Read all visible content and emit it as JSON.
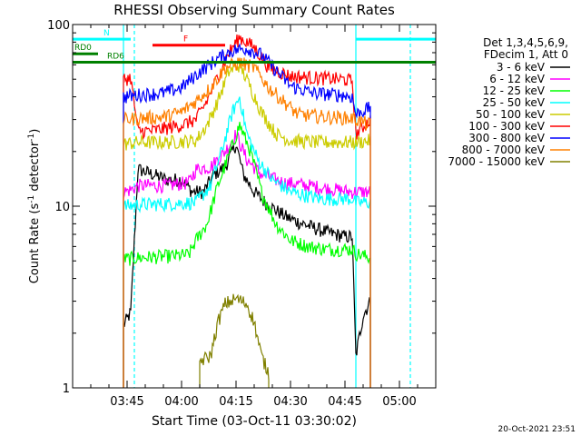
{
  "chart_data": {
    "type": "line",
    "title": "RHESSI Observing Summary Count Rates",
    "xlabel": "Start Time (03-Oct-11 03:30:02)",
    "ylabel_main": "Count Rate (s",
    "ylabel_exp1": "-1",
    "ylabel_mid": " detector",
    "ylabel_exp2": "-1",
    "ylabel_end": ")",
    "y_scale": "log",
    "ylim": [
      1,
      100
    ],
    "y_ticks": [
      {
        "value": 1,
        "label": "1"
      },
      {
        "value": 10,
        "label": "10"
      },
      {
        "value": 100,
        "label": "100"
      }
    ],
    "xlim": [
      "03:30",
      "05:10"
    ],
    "x_ticks": [
      "03:45",
      "04:00",
      "04:15",
      "04:30",
      "04:45",
      "05:00"
    ],
    "grid": false,
    "timestamp": "20-Oct-2021 23:51",
    "legend": {
      "header": [
        "Det 1,3,4,5,6,9,",
        "FDecim 1, Att 0"
      ],
      "entries": [
        {
          "label": "3 - 6 keV",
          "color": "#000000"
        },
        {
          "label": "6 - 12 keV",
          "color": "#ff00ff"
        },
        {
          "label": "12 - 25 keV",
          "color": "#00ff00"
        },
        {
          "label": "25 - 50 keV",
          "color": "#00ffff"
        },
        {
          "label": "50 - 100 keV",
          "color": "#cccc00"
        },
        {
          "label": "100 - 300 keV",
          "color": "#ff0000"
        },
        {
          "label": "300 - 800 keV",
          "color": "#0000ff"
        },
        {
          "label": "800 - 7000 keV",
          "color": "#ff8000"
        },
        {
          "label": "7000 - 15000 keV",
          "color": "#808000"
        }
      ]
    },
    "flags": [
      {
        "label": "N",
        "color": "#00ffff",
        "value": 83,
        "start": "03:30",
        "end": "03:46",
        "dashed": false
      },
      {
        "label": "",
        "color": "#00ffff",
        "value": 83,
        "start": "04:48",
        "end": "05:10",
        "dashed": false
      },
      {
        "label": "F",
        "color": "#ff0000",
        "value": 77,
        "start": "03:52",
        "end": "04:12",
        "dashed": false
      },
      {
        "label": "RD0",
        "color": "#008000",
        "value": 69,
        "start": "03:30",
        "end": "03:37",
        "dashed": false
      },
      {
        "label": "RD6",
        "color": "#008000",
        "value": 62,
        "start": "03:30",
        "end": "05:10",
        "dashed": false
      }
    ],
    "markers": [
      {
        "time": "03:44",
        "color": "#00ffff",
        "dashed": false
      },
      {
        "time": "03:47",
        "color": "#00ffff",
        "dashed": true
      },
      {
        "time": "04:48",
        "color": "#00ffff",
        "dashed": false
      },
      {
        "time": "05:03",
        "color": "#00ffff",
        "dashed": true
      }
    ],
    "coverage": {
      "start": "03:44",
      "end": "04:49"
    },
    "series": [
      {
        "name": "3 - 6 keV",
        "color": "#000000",
        "points": [
          [
            "03:44",
            2.2
          ],
          [
            "03:46",
            2.6
          ],
          [
            "03:48",
            16
          ],
          [
            "03:52",
            15
          ],
          [
            "03:56",
            14
          ],
          [
            "04:00",
            14
          ],
          [
            "04:03",
            12
          ],
          [
            "04:06",
            12
          ],
          [
            "04:09",
            15
          ],
          [
            "04:12",
            16.5
          ],
          [
            "04:14",
            20
          ],
          [
            "04:15",
            22
          ],
          [
            "04:17",
            15
          ],
          [
            "04:20",
            12
          ],
          [
            "04:23",
            10.5
          ],
          [
            "04:26",
            9.5
          ],
          [
            "04:29",
            8.7
          ],
          [
            "04:32",
            8.2
          ],
          [
            "04:35",
            7.8
          ],
          [
            "04:40",
            7.2
          ],
          [
            "04:45",
            6.8
          ],
          [
            "04:47",
            6.8
          ],
          [
            "04:48",
            1.5
          ],
          [
            "04:50",
            2.5
          ],
          [
            "04:52",
            3
          ]
        ]
      },
      {
        "name": "6 - 12 keV",
        "color": "#ff00ff",
        "points": [
          [
            "03:44",
            12
          ],
          [
            "03:46",
            12.3
          ],
          [
            "03:48",
            13
          ],
          [
            "03:56",
            13
          ],
          [
            "04:02",
            13.5
          ],
          [
            "04:04",
            16
          ],
          [
            "04:08",
            16.5
          ],
          [
            "04:12",
            20
          ],
          [
            "04:15",
            25
          ],
          [
            "04:18",
            18
          ],
          [
            "04:22",
            15
          ],
          [
            "04:28",
            13.5
          ],
          [
            "04:35",
            13
          ],
          [
            "04:40",
            12.5
          ],
          [
            "04:47",
            12
          ],
          [
            "04:48",
            12
          ],
          [
            "04:52",
            12
          ]
        ]
      },
      {
        "name": "12 - 25 keV",
        "color": "#00ff00",
        "points": [
          [
            "03:44",
            5.1
          ],
          [
            "03:48",
            5.2
          ],
          [
            "03:56",
            5.3
          ],
          [
            "04:02",
            5.4
          ],
          [
            "04:04",
            6.5
          ],
          [
            "04:07",
            8
          ],
          [
            "04:10",
            13
          ],
          [
            "04:13",
            19
          ],
          [
            "04:16",
            28
          ],
          [
            "04:19",
            20
          ],
          [
            "04:22",
            12
          ],
          [
            "04:26",
            8
          ],
          [
            "04:30",
            6.5
          ],
          [
            "04:35",
            6
          ],
          [
            "04:40",
            5.8
          ],
          [
            "04:47",
            5.8
          ],
          [
            "04:48",
            5.5
          ],
          [
            "04:52",
            5.2
          ]
        ]
      },
      {
        "name": "25 - 50 keV",
        "color": "#00ffff",
        "points": [
          [
            "03:44",
            10
          ],
          [
            "03:48",
            10.2
          ],
          [
            "03:56",
            10.3
          ],
          [
            "04:04",
            10.5
          ],
          [
            "04:08",
            13
          ],
          [
            "04:11",
            20
          ],
          [
            "04:14",
            33
          ],
          [
            "04:16",
            40
          ],
          [
            "04:18",
            25
          ],
          [
            "04:21",
            18
          ],
          [
            "04:25",
            14
          ],
          [
            "04:30",
            12
          ],
          [
            "04:38",
            11
          ],
          [
            "04:47",
            11
          ],
          [
            "04:48",
            10.5
          ],
          [
            "04:52",
            10.5
          ]
        ]
      },
      {
        "name": "50 - 100 keV",
        "color": "#cccc00",
        "points": [
          [
            "03:44",
            22
          ],
          [
            "03:48",
            22.5
          ],
          [
            "03:56",
            22.5
          ],
          [
            "04:04",
            23
          ],
          [
            "04:07",
            28
          ],
          [
            "04:10",
            38
          ],
          [
            "04:13",
            55
          ],
          [
            "04:16",
            60
          ],
          [
            "04:19",
            45
          ],
          [
            "04:22",
            33
          ],
          [
            "04:26",
            25
          ],
          [
            "04:30",
            23
          ],
          [
            "04:38",
            22.5
          ],
          [
            "04:47",
            22.5
          ],
          [
            "04:48",
            22.5
          ],
          [
            "04:52",
            23
          ]
        ]
      },
      {
        "name": "100 - 300 keV",
        "color": "#ff0000",
        "points": [
          [
            "03:44",
            50
          ],
          [
            "03:46",
            51
          ],
          [
            "03:48",
            26
          ],
          [
            "03:52",
            26
          ],
          [
            "04:00",
            28
          ],
          [
            "04:04",
            30
          ],
          [
            "04:07",
            38
          ],
          [
            "04:10",
            52
          ],
          [
            "04:13",
            70
          ],
          [
            "04:16",
            85
          ],
          [
            "04:20",
            75
          ],
          [
            "04:24",
            58
          ],
          [
            "04:30",
            52
          ],
          [
            "04:36",
            51
          ],
          [
            "04:44",
            50
          ],
          [
            "04:47",
            49
          ],
          [
            "04:48",
            25
          ],
          [
            "04:52",
            30
          ]
        ]
      },
      {
        "name": "300 - 800 keV",
        "color": "#0000ff",
        "points": [
          [
            "03:44",
            40
          ],
          [
            "03:48",
            41
          ],
          [
            "03:55",
            42
          ],
          [
            "04:00",
            45
          ],
          [
            "04:05",
            55
          ],
          [
            "04:10",
            65
          ],
          [
            "04:14",
            72
          ],
          [
            "04:18",
            74
          ],
          [
            "04:22",
            68
          ],
          [
            "04:26",
            56
          ],
          [
            "04:30",
            46
          ],
          [
            "04:36",
            42
          ],
          [
            "04:44",
            41
          ],
          [
            "04:47",
            40
          ],
          [
            "04:48",
            32
          ],
          [
            "04:52",
            35
          ]
        ]
      },
      {
        "name": "800 - 7000 keV",
        "color": "#ff8000",
        "points": [
          [
            "03:44",
            30
          ],
          [
            "03:48",
            30.5
          ],
          [
            "03:55",
            31
          ],
          [
            "04:00",
            33
          ],
          [
            "04:04",
            38
          ],
          [
            "04:08",
            45
          ],
          [
            "04:12",
            58
          ],
          [
            "04:16",
            62
          ],
          [
            "04:20",
            58
          ],
          [
            "04:24",
            45
          ],
          [
            "04:28",
            38
          ],
          [
            "04:32",
            32
          ],
          [
            "04:40",
            31
          ],
          [
            "04:47",
            30.5
          ],
          [
            "04:48",
            30
          ],
          [
            "04:52",
            28
          ]
        ]
      },
      {
        "name": "7000 - 15000 keV",
        "color": "#808000",
        "points": [
          [
            "04:05",
            1.4
          ],
          [
            "04:08",
            1.5
          ],
          [
            "04:10",
            2.3
          ],
          [
            "04:12",
            2.9
          ],
          [
            "04:15",
            3.1
          ],
          [
            "04:18",
            2.9
          ],
          [
            "04:20",
            2.3
          ],
          [
            "04:22",
            1.5
          ],
          [
            "04:24",
            1.2
          ]
        ]
      }
    ]
  }
}
